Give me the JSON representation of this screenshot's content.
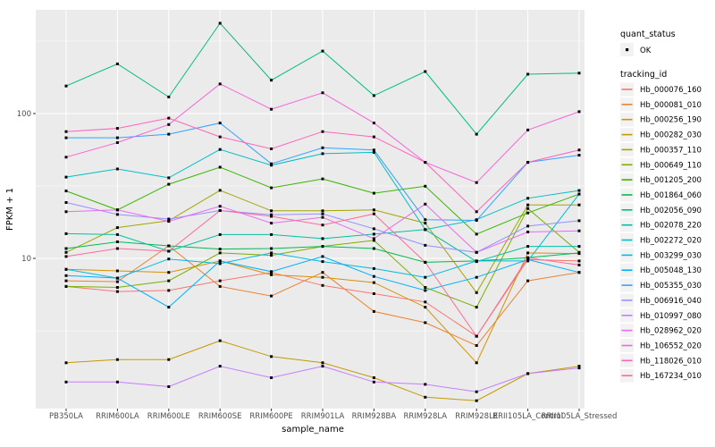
{
  "chart_data": {
    "type": "line",
    "title": "",
    "xlabel": "sample_name",
    "ylabel": "FPKM + 1",
    "y_scale": "log10",
    "y_tick_values": [
      10,
      100
    ],
    "y_tick_labels": [
      "10",
      "100"
    ],
    "ylim": [
      0.95,
      520
    ],
    "grid": true,
    "legend_position": "right",
    "marker": "black-point",
    "categories": [
      "PB350LA",
      "RRIM600LA",
      "RRIM600LE",
      "RRIM600SE",
      "RRIM600PE",
      "RRIM901LA",
      "RRIM928BA",
      "RRIM928LA",
      "RRIM928LE",
      "RRII105LA_Control",
      "RRII105LA_Stressed"
    ],
    "series": [
      {
        "name": "Hb_000076_160",
        "color": "#F8766D",
        "values": [
          6.4,
          5.9,
          6.0,
          7.0,
          8.0,
          6.5,
          5.7,
          5.0,
          2.9,
          9.8,
          9.6
        ]
      },
      {
        "name": "Hb_000081_010",
        "color": "#EA8331",
        "values": [
          7.0,
          6.9,
          12.2,
          6.4,
          5.5,
          8.0,
          4.3,
          3.6,
          2.5,
          7.0,
          8.0
        ]
      },
      {
        "name": "Hb_000256_190",
        "color": "#D89000",
        "values": [
          8.4,
          8.2,
          8.0,
          9.6,
          7.7,
          7.4,
          6.8,
          4.6,
          1.9,
          10.9,
          10.8
        ]
      },
      {
        "name": "Hb_000282_030",
        "color": "#C09B00",
        "values": [
          1.9,
          2.0,
          2.0,
          2.7,
          2.1,
          1.9,
          1.5,
          1.1,
          1.04,
          1.6,
          1.8
        ]
      },
      {
        "name": "Hb_000357_110",
        "color": "#A3A500",
        "values": [
          11.0,
          16.3,
          18.2,
          29.5,
          21.3,
          21.3,
          21.6,
          17.5,
          5.8,
          23.4,
          23.4
        ]
      },
      {
        "name": "Hb_000649_110",
        "color": "#7CAE00",
        "values": [
          6.4,
          6.3,
          7.0,
          10.9,
          10.5,
          12.1,
          13.3,
          6.3,
          4.6,
          22.1,
          11.0
        ]
      },
      {
        "name": "Hb_001205_200",
        "color": "#39B600",
        "values": [
          29.2,
          21.6,
          32.5,
          42.6,
          30.7,
          35.4,
          28.2,
          31.5,
          14.7,
          20.6,
          27.8
        ]
      },
      {
        "name": "Hb_001864_060",
        "color": "#00BB4E",
        "values": [
          11.7,
          13.0,
          12.2,
          11.6,
          11.7,
          12.1,
          11.7,
          9.4,
          9.6,
          10.1,
          10.9
        ]
      },
      {
        "name": "Hb_002056_090",
        "color": "#00BF7D",
        "values": [
          155,
          220,
          130,
          420,
          170,
          270,
          133,
          195,
          72,
          187,
          190
        ]
      },
      {
        "name": "Hb_002078_220",
        "color": "#00C1A3",
        "values": [
          14.8,
          14.6,
          11.2,
          14.6,
          14.6,
          13.7,
          14.7,
          15.8,
          9.5,
          12.1,
          12.1
        ]
      },
      {
        "name": "Hb_002272_020",
        "color": "#00BFC4",
        "values": [
          36.4,
          41.4,
          36.0,
          56.5,
          44.0,
          52.8,
          54.0,
          15.8,
          18.5,
          26.0,
          29.4
        ]
      },
      {
        "name": "Hb_003299_030",
        "color": "#00BAE0",
        "values": [
          8.4,
          7.3,
          9.9,
          9.2,
          10.9,
          9.5,
          8.5,
          7.4,
          9.6,
          9.6,
          27.8
        ]
      },
      {
        "name": "Hb_005048_130",
        "color": "#00B0F6",
        "values": [
          7.6,
          7.3,
          4.6,
          9.6,
          8.1,
          10.3,
          7.5,
          6.0,
          7.4,
          9.8,
          8.0
        ]
      },
      {
        "name": "Hb_005355_030",
        "color": "#35A2FF",
        "values": [
          68,
          68,
          72,
          86,
          45,
          58,
          56,
          18.5,
          18.3,
          46,
          51.6
        ]
      },
      {
        "name": "Hb_006916_040",
        "color": "#9590FF",
        "values": [
          24.3,
          20.1,
          18.7,
          21.4,
          20.0,
          20.3,
          16.0,
          12.3,
          11.0,
          16.7,
          18.2
        ]
      },
      {
        "name": "Hb_010997_080",
        "color": "#C77CFF",
        "values": [
          1.4,
          1.4,
          1.3,
          1.8,
          1.5,
          1.8,
          1.4,
          1.35,
          1.2,
          1.6,
          1.75
        ]
      },
      {
        "name": "Hb_028962_020",
        "color": "#E76BF3",
        "values": [
          21.0,
          21.6,
          18.0,
          22.9,
          17.5,
          19.2,
          13.7,
          23.7,
          11.0,
          15.2,
          15.5
        ]
      },
      {
        "name": "Hb_106552_020",
        "color": "#FA62DB",
        "values": [
          50,
          63,
          84,
          160,
          107,
          139,
          86,
          46,
          33.4,
          77,
          103
        ]
      },
      {
        "name": "Hb_118026_010",
        "color": "#FF62BC",
        "values": [
          75,
          79,
          93,
          69,
          57,
          75,
          69,
          46,
          21,
          46,
          56
        ]
      },
      {
        "name": "Hb_167234_010",
        "color": "#FF6A98",
        "values": [
          10.3,
          11.7,
          11.2,
          21.4,
          19.5,
          17.0,
          20.3,
          9.4,
          2.9,
          10.1,
          9.0
        ]
      }
    ]
  },
  "legend": {
    "quant_status_title": "quant_status",
    "quant_status_items": [
      {
        "label": "OK",
        "marker": "black-point"
      }
    ],
    "tracking_id_title": "tracking_id"
  },
  "style": {
    "panel_bg": "#EBEBEB",
    "grid_color": "#FFFFFF",
    "tick_text_color": "#4d4d4d",
    "legend_key_bg": "#F2F2F2",
    "point_color": "#000000"
  }
}
